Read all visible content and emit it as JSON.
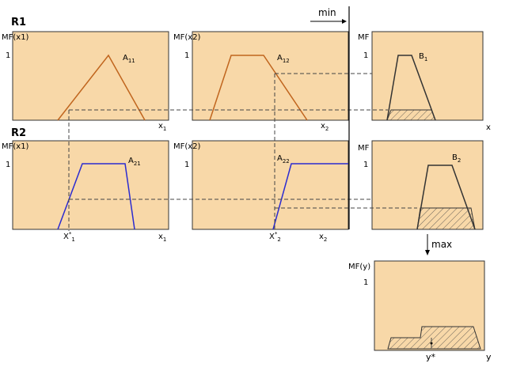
{
  "rules": [
    "R1",
    "R2"
  ],
  "operators": {
    "min": "min",
    "max": "max"
  },
  "axis_titles": {
    "mf_x1": "MF(x1)",
    "mf_x2": "MF(x2)",
    "mf": "MF",
    "mf_y": "MF(y)",
    "one": "1"
  },
  "sets": {
    "a11": {
      "base": "A",
      "sub": "11"
    },
    "a12": {
      "base": "A",
      "sub": "12"
    },
    "b1": {
      "base": "B",
      "sub": "1"
    },
    "a21": {
      "base": "A",
      "sub": "21"
    },
    "a22": {
      "base": "A",
      "sub": "22"
    },
    "b2": {
      "base": "B",
      "sub": "2"
    }
  },
  "variables": {
    "x1": {
      "base": "x",
      "sub": "1"
    },
    "x2": {
      "base": "x",
      "sub": "2"
    },
    "x": "x",
    "y": "y",
    "xs1": {
      "base": "X",
      "sup": "*",
      "sub": "1"
    },
    "xs2": {
      "base": "X",
      "sup": "*",
      "sub": "2"
    },
    "ystar": "y*"
  }
}
